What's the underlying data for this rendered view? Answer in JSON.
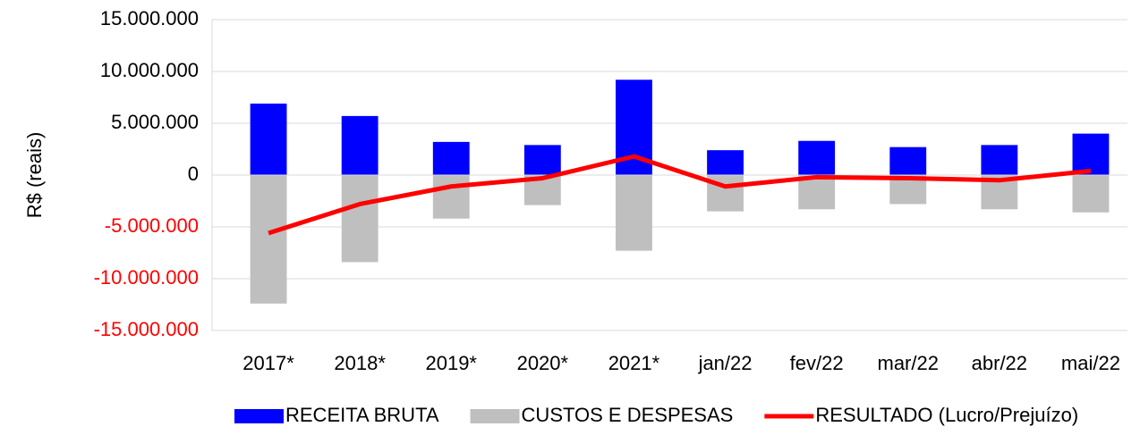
{
  "chart_data": {
    "type": "bar_line",
    "y_axis_label": "R$ (reais)",
    "categories": [
      "2017*",
      "2018*",
      "2019*",
      "2020*",
      "2021*",
      "jan/22",
      "fev/22",
      "mar/22",
      "abr/22",
      "mai/22"
    ],
    "series": [
      {
        "name": "RECEITA BRUTA",
        "color": "#0000ff",
        "kind": "bar",
        "values": [
          6900000,
          5700000,
          3200000,
          2900000,
          9200000,
          2400000,
          3300000,
          2700000,
          2900000,
          4000000
        ]
      },
      {
        "name": "CUSTOS E DESPESAS",
        "color": "#bfbfbf",
        "kind": "bar",
        "values": [
          -12400000,
          -8400000,
          -4200000,
          -2900000,
          -7300000,
          -3500000,
          -3300000,
          -2800000,
          -3300000,
          -3600000
        ]
      },
      {
        "name": "RESULTADO (Lucro/Prejuízo)",
        "color": "#ff0000",
        "kind": "line",
        "values": [
          -5600000,
          -2800000,
          -1100000,
          -300000,
          1800000,
          -1100000,
          -200000,
          -300000,
          -500000,
          400000
        ]
      }
    ],
    "ylim": [
      -15000000,
      15000000
    ],
    "yticks": [
      {
        "value": 15000000,
        "label": "15.000.000"
      },
      {
        "value": 10000000,
        "label": "10.000.000"
      },
      {
        "value": 5000000,
        "label": "5.000.000"
      },
      0,
      {
        "value": -5000000,
        "label": "-5.000.000"
      },
      {
        "value": -10000000,
        "label": "-10.000.000"
      },
      {
        "value": -15000000,
        "label": "-15.000.000"
      }
    ],
    "negative_tick_color": "#ff0000",
    "grid": true,
    "legend": "bottom"
  }
}
